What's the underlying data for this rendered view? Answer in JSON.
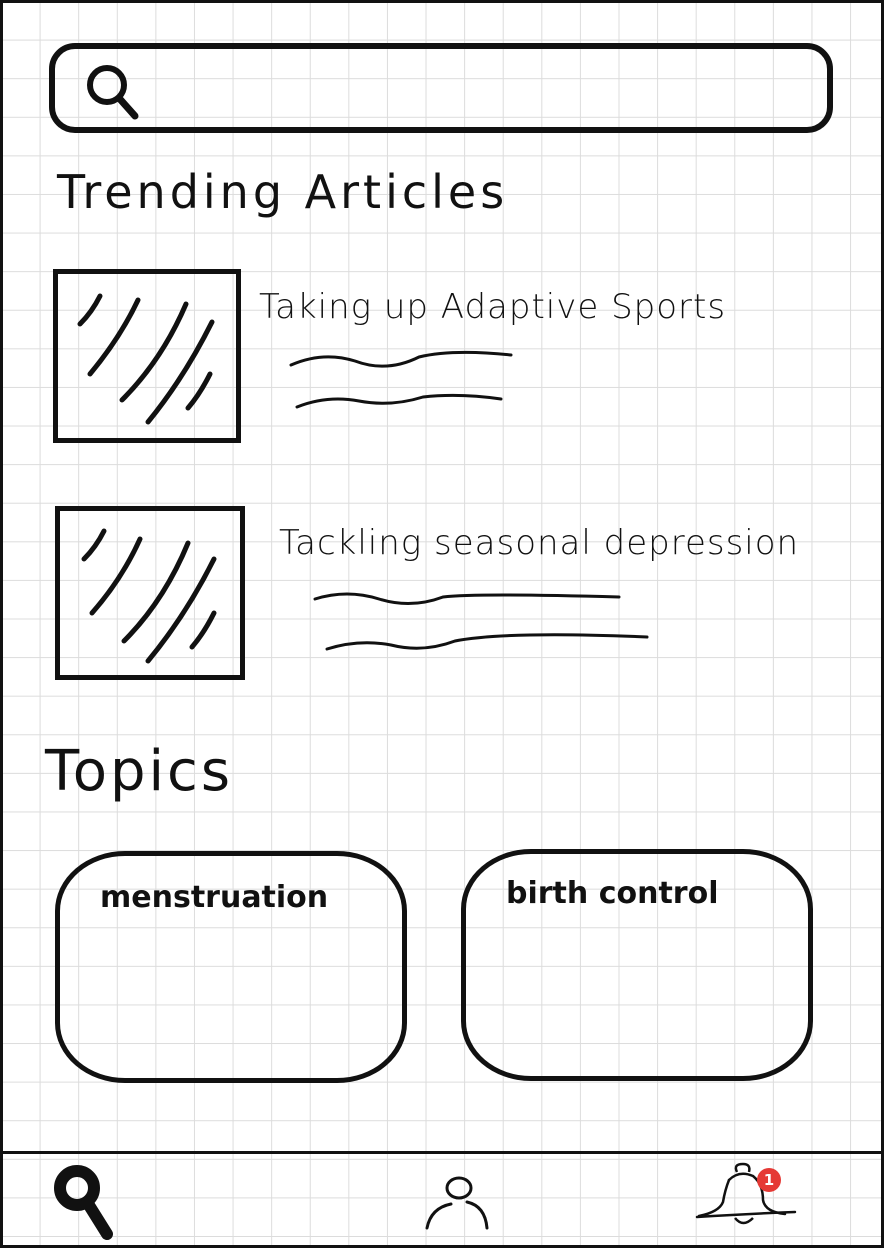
{
  "search": {
    "icon": "search-icon"
  },
  "trending": {
    "title": "Trending Articles",
    "articles": [
      {
        "title": "Taking up Adaptive Sports",
        "thumbnail": "image-placeholder"
      },
      {
        "title": "Tackling seasonal depression",
        "thumbnail": "image-placeholder"
      }
    ]
  },
  "topics": {
    "title": "Topics",
    "items": [
      {
        "label": "menstruation"
      },
      {
        "label": "birth control"
      }
    ]
  },
  "bottom_nav": {
    "items": [
      {
        "icon": "search-icon",
        "active": true
      },
      {
        "icon": "profile-icon"
      },
      {
        "icon": "bell-icon",
        "badge": "1"
      }
    ]
  }
}
